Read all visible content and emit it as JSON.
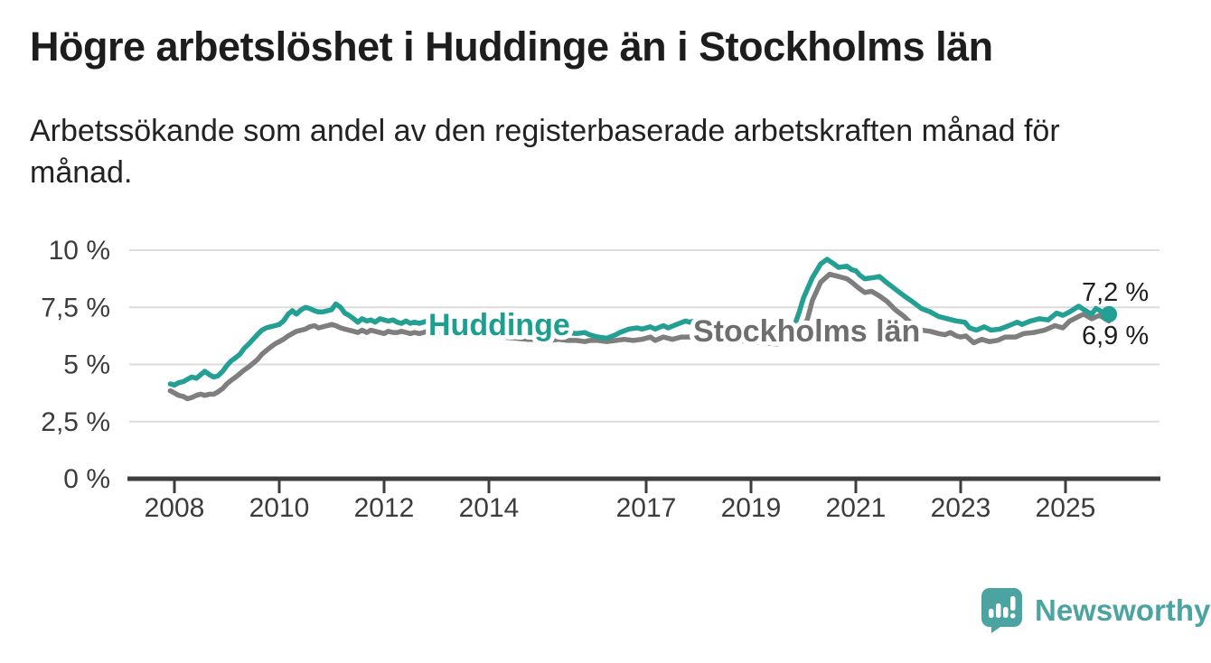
{
  "header": {
    "title": "Högre arbetslöshet i Huddinge än i Stockholms län",
    "subtitle": "Arbetssökande som andel av den registerbaserade arbetskraften månad för månad."
  },
  "chart_data": {
    "type": "line",
    "title": "Högre arbetslöshet i Huddinge än i Stockholms län",
    "xlabel": "",
    "ylabel": "",
    "unit": "%",
    "grid": true,
    "legend_position": "inline-labels-on-lines",
    "ylim": [
      0,
      10.5
    ],
    "x_domain": [
      2007.9,
      2026.1
    ],
    "y_axis": {
      "ticks": [
        {
          "value": 10,
          "label": "10 %"
        },
        {
          "value": 7.5,
          "label": "7,5 %"
        },
        {
          "value": 5,
          "label": "5 %"
        },
        {
          "value": 2.5,
          "label": "2,5 %"
        },
        {
          "value": 0,
          "label": "0 %"
        }
      ]
    },
    "x_axis": {
      "ticks": [
        {
          "value": 2008,
          "label": "2008"
        },
        {
          "value": 2010,
          "label": "2010"
        },
        {
          "value": 2012,
          "label": "2012"
        },
        {
          "value": 2014,
          "label": "2014"
        },
        {
          "value": 2017,
          "label": "2017"
        },
        {
          "value": 2019,
          "label": "2019"
        },
        {
          "value": 2021,
          "label": "2021"
        },
        {
          "value": 2023,
          "label": "2023"
        },
        {
          "value": 2025,
          "label": "2025"
        }
      ]
    },
    "series": [
      {
        "name": "Huddinge",
        "color": "#23a093",
        "label_color": "#1c9f8f",
        "end_label": "7,2 %",
        "end_value": 7.2,
        "end_dot": true,
        "points": [
          [
            2007.92,
            4.15
          ],
          [
            2008.0,
            4.1
          ],
          [
            2008.08,
            4.2
          ],
          [
            2008.17,
            4.25
          ],
          [
            2008.25,
            4.35
          ],
          [
            2008.33,
            4.45
          ],
          [
            2008.42,
            4.4
          ],
          [
            2008.5,
            4.55
          ],
          [
            2008.58,
            4.7
          ],
          [
            2008.67,
            4.55
          ],
          [
            2008.75,
            4.45
          ],
          [
            2008.83,
            4.5
          ],
          [
            2008.92,
            4.7
          ],
          [
            2009.0,
            4.95
          ],
          [
            2009.08,
            5.15
          ],
          [
            2009.17,
            5.3
          ],
          [
            2009.25,
            5.45
          ],
          [
            2009.33,
            5.7
          ],
          [
            2009.42,
            5.9
          ],
          [
            2009.5,
            6.1
          ],
          [
            2009.58,
            6.3
          ],
          [
            2009.67,
            6.5
          ],
          [
            2009.75,
            6.6
          ],
          [
            2009.83,
            6.65
          ],
          [
            2009.92,
            6.7
          ],
          [
            2010.0,
            6.75
          ],
          [
            2010.08,
            6.9
          ],
          [
            2010.17,
            7.2
          ],
          [
            2010.25,
            7.35
          ],
          [
            2010.33,
            7.2
          ],
          [
            2010.42,
            7.4
          ],
          [
            2010.5,
            7.5
          ],
          [
            2010.58,
            7.45
          ],
          [
            2010.67,
            7.35
          ],
          [
            2010.75,
            7.3
          ],
          [
            2010.83,
            7.3
          ],
          [
            2010.92,
            7.35
          ],
          [
            2011.0,
            7.4
          ],
          [
            2011.08,
            7.65
          ],
          [
            2011.17,
            7.5
          ],
          [
            2011.25,
            7.25
          ],
          [
            2011.33,
            7.15
          ],
          [
            2011.42,
            7.0
          ],
          [
            2011.5,
            6.85
          ],
          [
            2011.58,
            7.0
          ],
          [
            2011.67,
            6.9
          ],
          [
            2011.75,
            6.95
          ],
          [
            2011.83,
            6.85
          ],
          [
            2011.92,
            7.0
          ],
          [
            2012.0,
            6.95
          ],
          [
            2012.08,
            6.9
          ],
          [
            2012.17,
            6.95
          ],
          [
            2012.25,
            6.85
          ],
          [
            2012.33,
            6.8
          ],
          [
            2012.42,
            6.9
          ],
          [
            2012.5,
            6.8
          ],
          [
            2012.58,
            6.85
          ],
          [
            2012.67,
            6.8
          ],
          [
            2012.75,
            6.85
          ],
          [
            2012.83,
            6.9
          ],
          [
            2013.0,
            6.95
          ],
          [
            2013.25,
            6.9
          ],
          [
            2013.5,
            6.95
          ],
          [
            2013.75,
            6.8
          ],
          [
            2014.0,
            6.75
          ],
          [
            2014.25,
            6.8
          ],
          [
            2014.42,
            6.85
          ],
          [
            2014.6,
            6.6
          ],
          [
            2014.8,
            6.45
          ],
          [
            2015.0,
            6.35
          ],
          [
            2015.17,
            6.3
          ],
          [
            2015.33,
            6.45
          ],
          [
            2015.5,
            6.4
          ],
          [
            2015.67,
            6.35
          ],
          [
            2015.83,
            6.4
          ],
          [
            2015.92,
            6.3
          ],
          [
            2016.08,
            6.2
          ],
          [
            2016.25,
            6.15
          ],
          [
            2016.42,
            6.3
          ],
          [
            2016.5,
            6.4
          ],
          [
            2016.67,
            6.55
          ],
          [
            2016.83,
            6.6
          ],
          [
            2016.92,
            6.55
          ],
          [
            2017.08,
            6.65
          ],
          [
            2017.17,
            6.55
          ],
          [
            2017.33,
            6.7
          ],
          [
            2017.42,
            6.6
          ],
          [
            2017.58,
            6.75
          ],
          [
            2017.75,
            6.9
          ],
          [
            2017.83,
            6.85
          ],
          [
            2018.0,
            6.95
          ],
          [
            2018.17,
            6.85
          ],
          [
            2018.33,
            6.75
          ],
          [
            2018.5,
            6.7
          ],
          [
            2018.67,
            6.65
          ],
          [
            2018.83,
            6.6
          ],
          [
            2019.0,
            6.55
          ],
          [
            2019.25,
            6.5
          ],
          [
            2019.5,
            6.45
          ],
          [
            2019.67,
            6.5
          ],
          [
            2019.83,
            6.7
          ],
          [
            2019.92,
            7.3
          ],
          [
            2020.0,
            7.9
          ],
          [
            2020.17,
            8.8
          ],
          [
            2020.33,
            9.4
          ],
          [
            2020.45,
            9.6
          ],
          [
            2020.55,
            9.45
          ],
          [
            2020.67,
            9.25
          ],
          [
            2020.83,
            9.3
          ],
          [
            2020.92,
            9.15
          ],
          [
            2021.0,
            9.1
          ],
          [
            2021.08,
            8.9
          ],
          [
            2021.17,
            8.75
          ],
          [
            2021.33,
            8.8
          ],
          [
            2021.45,
            8.85
          ],
          [
            2021.58,
            8.6
          ],
          [
            2021.75,
            8.3
          ],
          [
            2021.92,
            8.0
          ],
          [
            2022.08,
            7.75
          ],
          [
            2022.25,
            7.45
          ],
          [
            2022.42,
            7.3
          ],
          [
            2022.58,
            7.1
          ],
          [
            2022.75,
            7.0
          ],
          [
            2022.92,
            6.9
          ],
          [
            2023.08,
            6.85
          ],
          [
            2023.17,
            6.6
          ],
          [
            2023.3,
            6.5
          ],
          [
            2023.45,
            6.65
          ],
          [
            2023.58,
            6.5
          ],
          [
            2023.75,
            6.55
          ],
          [
            2023.92,
            6.7
          ],
          [
            2024.08,
            6.85
          ],
          [
            2024.17,
            6.75
          ],
          [
            2024.33,
            6.9
          ],
          [
            2024.5,
            7.0
          ],
          [
            2024.67,
            6.95
          ],
          [
            2024.83,
            7.25
          ],
          [
            2024.95,
            7.15
          ],
          [
            2025.08,
            7.3
          ],
          [
            2025.25,
            7.55
          ],
          [
            2025.42,
            7.3
          ],
          [
            2025.5,
            7.2
          ],
          [
            2025.58,
            7.45
          ],
          [
            2025.7,
            7.3
          ],
          [
            2025.83,
            7.2
          ]
        ]
      },
      {
        "name": "Stockholms län",
        "color": "#7e7e7e",
        "label_color": "#6e6e6e",
        "end_label": "6,9 %",
        "end_value": 6.9,
        "end_dot": false,
        "points": [
          [
            2007.92,
            3.85
          ],
          [
            2008.0,
            3.75
          ],
          [
            2008.08,
            3.65
          ],
          [
            2008.17,
            3.6
          ],
          [
            2008.25,
            3.5
          ],
          [
            2008.33,
            3.55
          ],
          [
            2008.42,
            3.65
          ],
          [
            2008.5,
            3.7
          ],
          [
            2008.58,
            3.65
          ],
          [
            2008.67,
            3.7
          ],
          [
            2008.75,
            3.7
          ],
          [
            2008.83,
            3.8
          ],
          [
            2008.92,
            3.95
          ],
          [
            2009.0,
            4.15
          ],
          [
            2009.08,
            4.3
          ],
          [
            2009.17,
            4.45
          ],
          [
            2009.25,
            4.6
          ],
          [
            2009.33,
            4.75
          ],
          [
            2009.42,
            4.9
          ],
          [
            2009.5,
            5.05
          ],
          [
            2009.58,
            5.2
          ],
          [
            2009.67,
            5.45
          ],
          [
            2009.75,
            5.6
          ],
          [
            2009.83,
            5.75
          ],
          [
            2009.92,
            5.9
          ],
          [
            2010.0,
            6.0
          ],
          [
            2010.08,
            6.1
          ],
          [
            2010.17,
            6.25
          ],
          [
            2010.25,
            6.35
          ],
          [
            2010.33,
            6.45
          ],
          [
            2010.42,
            6.5
          ],
          [
            2010.5,
            6.55
          ],
          [
            2010.58,
            6.65
          ],
          [
            2010.67,
            6.7
          ],
          [
            2010.75,
            6.6
          ],
          [
            2010.83,
            6.65
          ],
          [
            2010.92,
            6.7
          ],
          [
            2011.0,
            6.75
          ],
          [
            2011.08,
            6.7
          ],
          [
            2011.17,
            6.6
          ],
          [
            2011.25,
            6.55
          ],
          [
            2011.33,
            6.5
          ],
          [
            2011.42,
            6.45
          ],
          [
            2011.5,
            6.4
          ],
          [
            2011.58,
            6.5
          ],
          [
            2011.67,
            6.4
          ],
          [
            2011.75,
            6.5
          ],
          [
            2011.83,
            6.45
          ],
          [
            2011.92,
            6.4
          ],
          [
            2012.0,
            6.35
          ],
          [
            2012.08,
            6.45
          ],
          [
            2012.17,
            6.4
          ],
          [
            2012.25,
            6.4
          ],
          [
            2012.33,
            6.45
          ],
          [
            2012.42,
            6.4
          ],
          [
            2012.5,
            6.35
          ],
          [
            2012.58,
            6.4
          ],
          [
            2012.67,
            6.35
          ],
          [
            2012.75,
            6.4
          ],
          [
            2012.83,
            6.45
          ],
          [
            2013.0,
            6.4
          ],
          [
            2013.25,
            6.35
          ],
          [
            2013.5,
            6.35
          ],
          [
            2013.75,
            6.3
          ],
          [
            2014.0,
            6.25
          ],
          [
            2014.25,
            6.2
          ],
          [
            2014.5,
            6.15
          ],
          [
            2014.75,
            6.1
          ],
          [
            2015.0,
            6.1
          ],
          [
            2015.17,
            6.05
          ],
          [
            2015.33,
            6.1
          ],
          [
            2015.5,
            6.05
          ],
          [
            2015.67,
            6.05
          ],
          [
            2015.83,
            6.0
          ],
          [
            2015.92,
            6.05
          ],
          [
            2016.08,
            6.05
          ],
          [
            2016.25,
            6.0
          ],
          [
            2016.42,
            6.05
          ],
          [
            2016.58,
            6.1
          ],
          [
            2016.75,
            6.05
          ],
          [
            2016.92,
            6.1
          ],
          [
            2017.08,
            6.2
          ],
          [
            2017.17,
            6.05
          ],
          [
            2017.33,
            6.2
          ],
          [
            2017.5,
            6.1
          ],
          [
            2017.67,
            6.2
          ],
          [
            2017.83,
            6.2
          ],
          [
            2018.0,
            6.25
          ],
          [
            2018.25,
            6.2
          ],
          [
            2018.5,
            6.1
          ],
          [
            2018.75,
            6.05
          ],
          [
            2019.0,
            6.0
          ],
          [
            2019.25,
            5.95
          ],
          [
            2019.5,
            5.9
          ],
          [
            2019.75,
            6.0
          ],
          [
            2019.92,
            6.3
          ],
          [
            2020.08,
            7.0
          ],
          [
            2020.17,
            7.8
          ],
          [
            2020.33,
            8.6
          ],
          [
            2020.5,
            8.95
          ],
          [
            2020.58,
            8.9
          ],
          [
            2020.67,
            8.85
          ],
          [
            2020.83,
            8.75
          ],
          [
            2020.92,
            8.6
          ],
          [
            2021.0,
            8.45
          ],
          [
            2021.08,
            8.3
          ],
          [
            2021.17,
            8.15
          ],
          [
            2021.3,
            8.2
          ],
          [
            2021.45,
            8.0
          ],
          [
            2021.6,
            7.75
          ],
          [
            2021.75,
            7.4
          ],
          [
            2021.92,
            7.1
          ],
          [
            2022.08,
            6.75
          ],
          [
            2022.25,
            6.5
          ],
          [
            2022.42,
            6.45
          ],
          [
            2022.58,
            6.35
          ],
          [
            2022.7,
            6.3
          ],
          [
            2022.8,
            6.4
          ],
          [
            2022.92,
            6.25
          ],
          [
            2023.0,
            6.2
          ],
          [
            2023.1,
            6.25
          ],
          [
            2023.25,
            5.95
          ],
          [
            2023.4,
            6.1
          ],
          [
            2023.55,
            6.0
          ],
          [
            2023.7,
            6.05
          ],
          [
            2023.85,
            6.2
          ],
          [
            2024.05,
            6.2
          ],
          [
            2024.2,
            6.35
          ],
          [
            2024.4,
            6.4
          ],
          [
            2024.6,
            6.5
          ],
          [
            2024.8,
            6.7
          ],
          [
            2024.95,
            6.6
          ],
          [
            2025.08,
            6.9
          ],
          [
            2025.25,
            7.1
          ],
          [
            2025.35,
            7.2
          ],
          [
            2025.5,
            7.0
          ],
          [
            2025.65,
            7.15
          ],
          [
            2025.83,
            6.9
          ]
        ]
      }
    ]
  },
  "footer": {
    "brand": "Newsworthy",
    "brand_color": "#4ba4a1"
  },
  "colors": {
    "background": "#ffffff",
    "grid": "#dcdcdc",
    "axis": "#3d3d3d",
    "title_text": "#1d1d1d",
    "huddinge_teal": "#23a093",
    "stockholm_gray": "#7e7e7e",
    "logo_teal": "#4ba4a1"
  }
}
